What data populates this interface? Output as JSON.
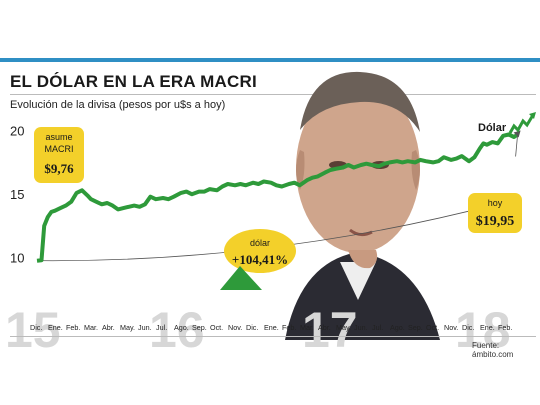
{
  "header": {
    "title": "EL DÓLAR EN LA ERA MACRI",
    "subtitle": "Evolución de la divisa (pesos por u$s a hoy)"
  },
  "source": "Fuente: ámbito.com",
  "colors": {
    "line": "#2e9a3a",
    "accent_bar": "#2f8fc4",
    "badge": "#f3d02a",
    "year": "#d7d7d7"
  },
  "chart_data": {
    "type": "line",
    "ylim": [
      8,
      21
    ],
    "yticks": [
      "20",
      "15",
      "10"
    ],
    "xlim": [
      0,
      27
    ],
    "x_tick_labels": [
      "Dic.",
      "Ene.",
      "Feb.",
      "Mar.",
      "Abr.",
      "May.",
      "Jun.",
      "Jul.",
      "Ago.",
      "Sep.",
      "Oct.",
      "Nov.",
      "Dic.",
      "Ene.",
      "Feb.",
      "Mar.",
      "Abr.",
      "May.",
      "Jun.",
      "Jul.",
      "Ago.",
      "Sep.",
      "Oct.",
      "Nov.",
      "Dic.",
      "Ene.",
      "Feb."
    ],
    "year_labels": [
      {
        "label": "15",
        "x": 0
      },
      {
        "label": "16",
        "x": 8
      },
      {
        "label": "17",
        "x": 16.5
      },
      {
        "label": "18",
        "x": 25
      }
    ],
    "series": [
      {
        "name": "Dólar",
        "points": [
          [
            0,
            9.76
          ],
          [
            0.25,
            9.8
          ],
          [
            0.4,
            12.5
          ],
          [
            0.6,
            13.2
          ],
          [
            0.8,
            13.6
          ],
          [
            1.0,
            13.7
          ],
          [
            1.3,
            13.9
          ],
          [
            1.6,
            14.1
          ],
          [
            1.9,
            14.4
          ],
          [
            2.2,
            15.1
          ],
          [
            2.5,
            15.3
          ],
          [
            2.8,
            14.9
          ],
          [
            3.0,
            14.6
          ],
          [
            3.3,
            14.4
          ],
          [
            3.6,
            14.2
          ],
          [
            3.9,
            14.3
          ],
          [
            4.2,
            14.1
          ],
          [
            4.5,
            13.8
          ],
          [
            4.8,
            13.9
          ],
          [
            5.1,
            14.0
          ],
          [
            5.4,
            14.1
          ],
          [
            5.7,
            14.0
          ],
          [
            6.0,
            14.2
          ],
          [
            6.3,
            14.8
          ],
          [
            6.6,
            14.6
          ],
          [
            7.0,
            14.7
          ],
          [
            7.3,
            14.6
          ],
          [
            7.6,
            14.8
          ],
          [
            8.0,
            15.1
          ],
          [
            8.3,
            15.2
          ],
          [
            8.6,
            15.0
          ],
          [
            9.0,
            15.2
          ],
          [
            9.3,
            15.2
          ],
          [
            9.6,
            15.4
          ],
          [
            10.0,
            15.3
          ],
          [
            10.3,
            15.6
          ],
          [
            10.6,
            15.8
          ],
          [
            11.0,
            15.7
          ],
          [
            11.3,
            15.8
          ],
          [
            11.6,
            15.7
          ],
          [
            12.0,
            15.9
          ],
          [
            12.3,
            15.8
          ],
          [
            12.6,
            16.0
          ],
          [
            13.0,
            15.9
          ],
          [
            13.3,
            15.7
          ],
          [
            13.6,
            15.6
          ],
          [
            14.0,
            15.8
          ],
          [
            14.3,
            15.9
          ],
          [
            14.6,
            15.7
          ],
          [
            15.0,
            16.1
          ],
          [
            15.3,
            16.3
          ],
          [
            15.6,
            16.4
          ],
          [
            16.0,
            16.7
          ],
          [
            16.3,
            16.9
          ],
          [
            16.6,
            17.0
          ],
          [
            17.0,
            17.1
          ],
          [
            17.3,
            17.3
          ],
          [
            17.6,
            17.1
          ],
          [
            18.0,
            17.3
          ],
          [
            18.3,
            17.4
          ],
          [
            18.6,
            17.3
          ],
          [
            19.0,
            17.2
          ],
          [
            19.3,
            17.4
          ],
          [
            19.6,
            17.5
          ],
          [
            20.0,
            17.6
          ],
          [
            20.3,
            17.5
          ],
          [
            20.6,
            17.6
          ],
          [
            21.0,
            17.5
          ],
          [
            21.3,
            17.7
          ],
          [
            21.6,
            17.6
          ],
          [
            22.0,
            17.5
          ],
          [
            22.3,
            17.6
          ],
          [
            22.6,
            17.9
          ],
          [
            23.0,
            17.7
          ],
          [
            23.3,
            17.8
          ],
          [
            23.6,
            18.0
          ],
          [
            24.0,
            17.6
          ],
          [
            24.3,
            17.9
          ],
          [
            24.6,
            18.6
          ],
          [
            24.8,
            19.0
          ],
          [
            25.0,
            18.9
          ],
          [
            25.3,
            19.1
          ],
          [
            25.6,
            19.0
          ],
          [
            25.9,
            19.6
          ],
          [
            26.2,
            19.7
          ],
          [
            26.5,
            19.5
          ],
          [
            26.7,
            19.7
          ]
        ]
      }
    ],
    "annotations": {
      "start": {
        "label_top": "asume",
        "label_mid": "MACRI",
        "value": "$9,76"
      },
      "end": {
        "label": "hoy",
        "value": "$19,95"
      },
      "change": {
        "label": "dólar",
        "value": "+104,41%"
      },
      "legend": "Dólar"
    }
  }
}
